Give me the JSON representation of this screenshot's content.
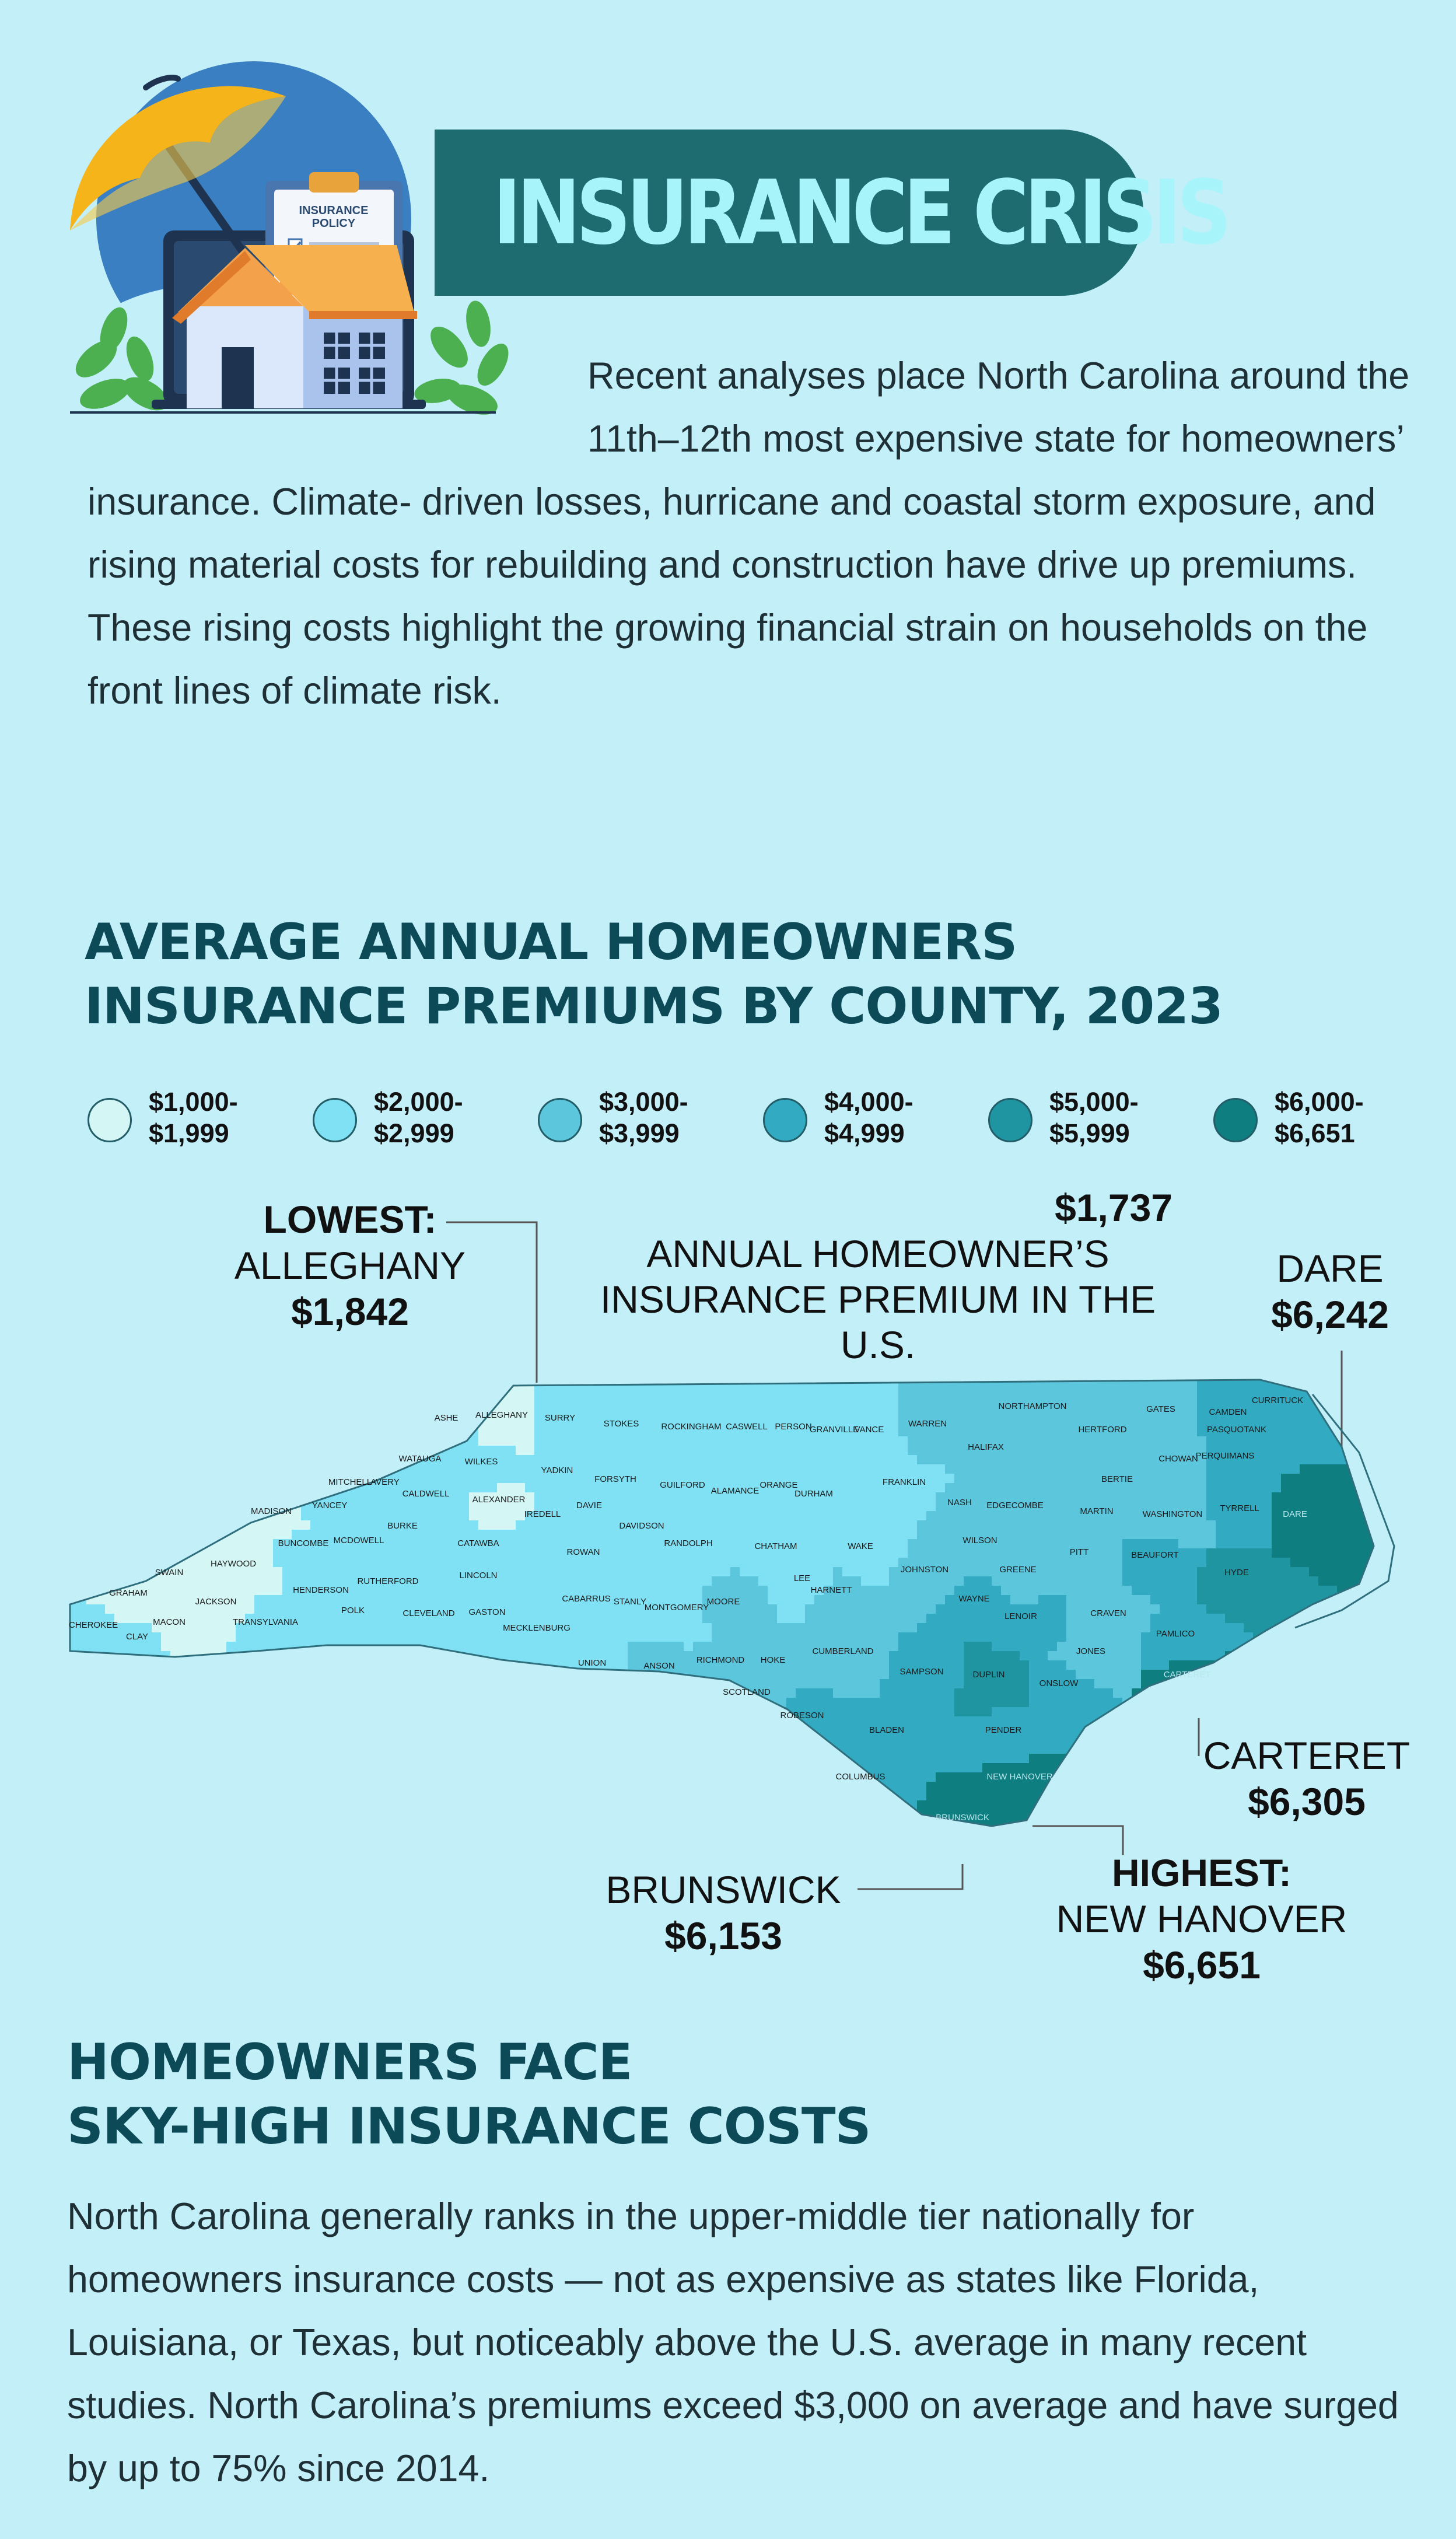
{
  "header": {
    "title": "INSURANCE CRISIS",
    "policy_label_line1": "INSURANCE",
    "policy_label_line2": "POLICY",
    "intro": "Recent analyses place North Carolina around the 11th–12th most expensive state for homeowners’ insurance. Climate- driven losses, hurricane and coastal storm exposure, and rising material costs for rebuilding and construction have drive up premiums. These rising costs highlight the growing financial strain on households on the front lines of climate risk."
  },
  "map_section": {
    "heading_line1": "AVERAGE ANNUAL HOMEOWNERS",
    "heading_line2": "INSURANCE PREMIUMS BY COUNTY, 2023",
    "legend": [
      {
        "line1": "$1,000-",
        "line2": "$1,999",
        "color": "#d4f7f5"
      },
      {
        "line1": "$2,000-",
        "line2": "$2,999",
        "color": "#7fe1f3"
      },
      {
        "line1": "$3,000-",
        "line2": "$3,999",
        "color": "#5cc6dd"
      },
      {
        "line1": "$4,000-",
        "line2": "$4,999",
        "color": "#32abc2"
      },
      {
        "line1": "$5,000-",
        "line2": "$5,999",
        "color": "#1f95a2"
      },
      {
        "line1": "$6,000-",
        "line2": "$6,651",
        "color": "#0f7e80"
      }
    ],
    "callouts": {
      "lowest": {
        "label": "LOWEST:",
        "county": "ALLEGHANY",
        "value": "$1,842"
      },
      "us": {
        "value": "$1,737",
        "line1": "ANNUAL HOMEOWNER’S",
        "line2": "INSURANCE PREMIUM IN THE",
        "line3": "U.S."
      },
      "dare": {
        "county": "DARE",
        "value": "$6,242"
      },
      "carteret": {
        "county": "CARTERET",
        "value": "$6,305"
      },
      "brunswick": {
        "county": "BRUNSWICK",
        "value": "$6,153"
      },
      "highest": {
        "label": "HIGHEST:",
        "county": "NEW HANOVER",
        "value": "$6,651"
      }
    },
    "counties": [
      {
        "name": "ASHE",
        "tier": 2
      },
      {
        "name": "ALLEGHANY",
        "tier": 1
      },
      {
        "name": "SURRY",
        "tier": 2
      },
      {
        "name": "STOKES",
        "tier": 2
      },
      {
        "name": "ROCKINGHAM",
        "tier": 2
      },
      {
        "name": "CASWELL",
        "tier": 2
      },
      {
        "name": "PERSON",
        "tier": 2
      },
      {
        "name": "GRANVILLE",
        "tier": 2
      },
      {
        "name": "VANCE",
        "tier": 2
      },
      {
        "name": "WARREN",
        "tier": 3
      },
      {
        "name": "NORTHAMPTON",
        "tier": 3
      },
      {
        "name": "HERTFORD",
        "tier": 3
      },
      {
        "name": "GATES",
        "tier": 3
      },
      {
        "name": "CAMDEN",
        "tier": 4
      },
      {
        "name": "PASQUOTANK",
        "tier": 4
      },
      {
        "name": "CURRITUCK",
        "tier": 4
      },
      {
        "name": "PERQUIMANS",
        "tier": 4
      },
      {
        "name": "CHOWAN",
        "tier": 3
      },
      {
        "name": "BERTIE",
        "tier": 3
      },
      {
        "name": "HALIFAX",
        "tier": 3
      },
      {
        "name": "WATAUGA",
        "tier": 2
      },
      {
        "name": "WILKES",
        "tier": 2
      },
      {
        "name": "YADKIN",
        "tier": 2
      },
      {
        "name": "FORSYTH",
        "tier": 2
      },
      {
        "name": "GUILFORD",
        "tier": 2
      },
      {
        "name": "ALAMANCE",
        "tier": 2
      },
      {
        "name": "ORANGE",
        "tier": 2
      },
      {
        "name": "DURHAM",
        "tier": 2
      },
      {
        "name": "FRANKLIN",
        "tier": 2
      },
      {
        "name": "NASH",
        "tier": 3
      },
      {
        "name": "EDGECOMBE",
        "tier": 3
      },
      {
        "name": "MARTIN",
        "tier": 3
      },
      {
        "name": "WASHINGTON",
        "tier": 3
      },
      {
        "name": "TYRRELL",
        "tier": 4
      },
      {
        "name": "DARE",
        "tier": 6
      },
      {
        "name": "MITCHELL",
        "tier": 2
      },
      {
        "name": "AVERY",
        "tier": 2
      },
      {
        "name": "YANCEY",
        "tier": 2
      },
      {
        "name": "CALDWELL",
        "tier": 2
      },
      {
        "name": "ALEXANDER",
        "tier": 1
      },
      {
        "name": "IREDELL",
        "tier": 2
      },
      {
        "name": "DAVIE",
        "tier": 2
      },
      {
        "name": "DAVIDSON",
        "tier": 2
      },
      {
        "name": "RANDOLPH",
        "tier": 2
      },
      {
        "name": "CHATHAM",
        "tier": 2
      },
      {
        "name": "WAKE",
        "tier": 2
      },
      {
        "name": "JOHNSTON",
        "tier": 3
      },
      {
        "name": "WILSON",
        "tier": 3
      },
      {
        "name": "GREENE",
        "tier": 3
      },
      {
        "name": "PITT",
        "tier": 3
      },
      {
        "name": "BEAUFORT",
        "tier": 4
      },
      {
        "name": "HYDE",
        "tier": 5
      },
      {
        "name": "MADISON",
        "tier": 1
      },
      {
        "name": "BURKE",
        "tier": 2
      },
      {
        "name": "MCDOWELL",
        "tier": 2
      },
      {
        "name": "CATAWBA",
        "tier": 2
      },
      {
        "name": "ROWAN",
        "tier": 2
      },
      {
        "name": "BUNCOMBE",
        "tier": 2
      },
      {
        "name": "HAYWOOD",
        "tier": 1
      },
      {
        "name": "SWAIN",
        "tier": 1
      },
      {
        "name": "GRAHAM",
        "tier": 1
      },
      {
        "name": "CHEROKEE",
        "tier": 2
      },
      {
        "name": "CLAY",
        "tier": 2
      },
      {
        "name": "MACON",
        "tier": 1
      },
      {
        "name": "JACKSON",
        "tier": 1
      },
      {
        "name": "TRANSYLVANIA",
        "tier": 2
      },
      {
        "name": "HENDERSON",
        "tier": 2
      },
      {
        "name": "POLK",
        "tier": 2
      },
      {
        "name": "RUTHERFORD",
        "tier": 2
      },
      {
        "name": "CLEVELAND",
        "tier": 2
      },
      {
        "name": "LINCOLN",
        "tier": 2
      },
      {
        "name": "GASTON",
        "tier": 2
      },
      {
        "name": "MECKLENBURG",
        "tier": 2
      },
      {
        "name": "CABARRUS",
        "tier": 2
      },
      {
        "name": "STANLY",
        "tier": 2
      },
      {
        "name": "MONTGOMERY",
        "tier": 2
      },
      {
        "name": "MOORE",
        "tier": 3
      },
      {
        "name": "LEE",
        "tier": 2
      },
      {
        "name": "HARNETT",
        "tier": 3
      },
      {
        "name": "WAYNE",
        "tier": 4
      },
      {
        "name": "LENOIR",
        "tier": 4
      },
      {
        "name": "CRAVEN",
        "tier": 3
      },
      {
        "name": "PAMLICO",
        "tier": 4
      },
      {
        "name": "JONES",
        "tier": 3
      },
      {
        "name": "UNION",
        "tier": 2
      },
      {
        "name": "ANSON",
        "tier": 3
      },
      {
        "name": "RICHMOND",
        "tier": 3
      },
      {
        "name": "SCOTLAND",
        "tier": 3
      },
      {
        "name": "HOKE",
        "tier": 3
      },
      {
        "name": "CUMBERLAND",
        "tier": 3
      },
      {
        "name": "SAMPSON",
        "tier": 4
      },
      {
        "name": "DUPLIN",
        "tier": 5
      },
      {
        "name": "ONSLOW",
        "tier": 4
      },
      {
        "name": "CARTERET",
        "tier": 6
      },
      {
        "name": "ROBESON",
        "tier": 4
      },
      {
        "name": "BLADEN",
        "tier": 4
      },
      {
        "name": "PENDER",
        "tier": 4
      },
      {
        "name": "COLUMBUS",
        "tier": 4
      },
      {
        "name": "BRUNSWICK",
        "tier": 6
      },
      {
        "name": "NEW HANOVER",
        "tier": 6
      }
    ]
  },
  "bottom_section": {
    "heading_line1": "HOMEOWNERS FACE",
    "heading_line2": "SKY-HIGH INSURANCE COSTS",
    "text": "North Carolina generally ranks in the upper-middle tier nationally for homeowners insurance costs — not as expensive as states like Florida, Louisiana, or Texas, but noticeably above the U.S. average in many recent studies. North Carolina’s premiums exceed $3,000 on average and have surged by up to 75% since 2014."
  }
}
